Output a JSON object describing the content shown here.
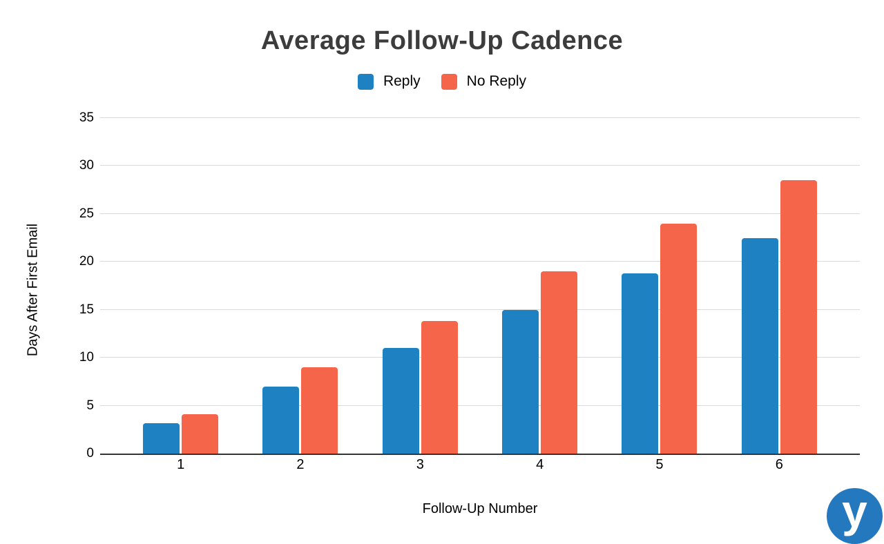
{
  "chart_data": {
    "type": "bar",
    "title": "Average Follow-Up Cadence",
    "xlabel": "Follow-Up Number",
    "ylabel": "Days After First Email",
    "categories": [
      "1",
      "2",
      "3",
      "4",
      "5",
      "6"
    ],
    "series": [
      {
        "name": "Reply",
        "color": "#1E82C2",
        "values": [
          3.2,
          7,
          11,
          15,
          18.8,
          22.5
        ]
      },
      {
        "name": "No Reply",
        "color": "#F4654A",
        "values": [
          4.1,
          9,
          13.8,
          19,
          24,
          28.5
        ]
      }
    ],
    "ylim": [
      0,
      35
    ],
    "yticks": [
      0,
      5,
      10,
      15,
      20,
      25,
      30,
      35
    ],
    "grid": true,
    "legend_position": "top",
    "colors": {
      "title_text": "#3c3c3c",
      "axis_text": "#000000",
      "gridline": "#d9d9d9",
      "baseline": "#333333"
    }
  },
  "branding": {
    "logo_name": "yesware-logo",
    "logo_letter": "y",
    "logo_color": "#2478BD"
  }
}
